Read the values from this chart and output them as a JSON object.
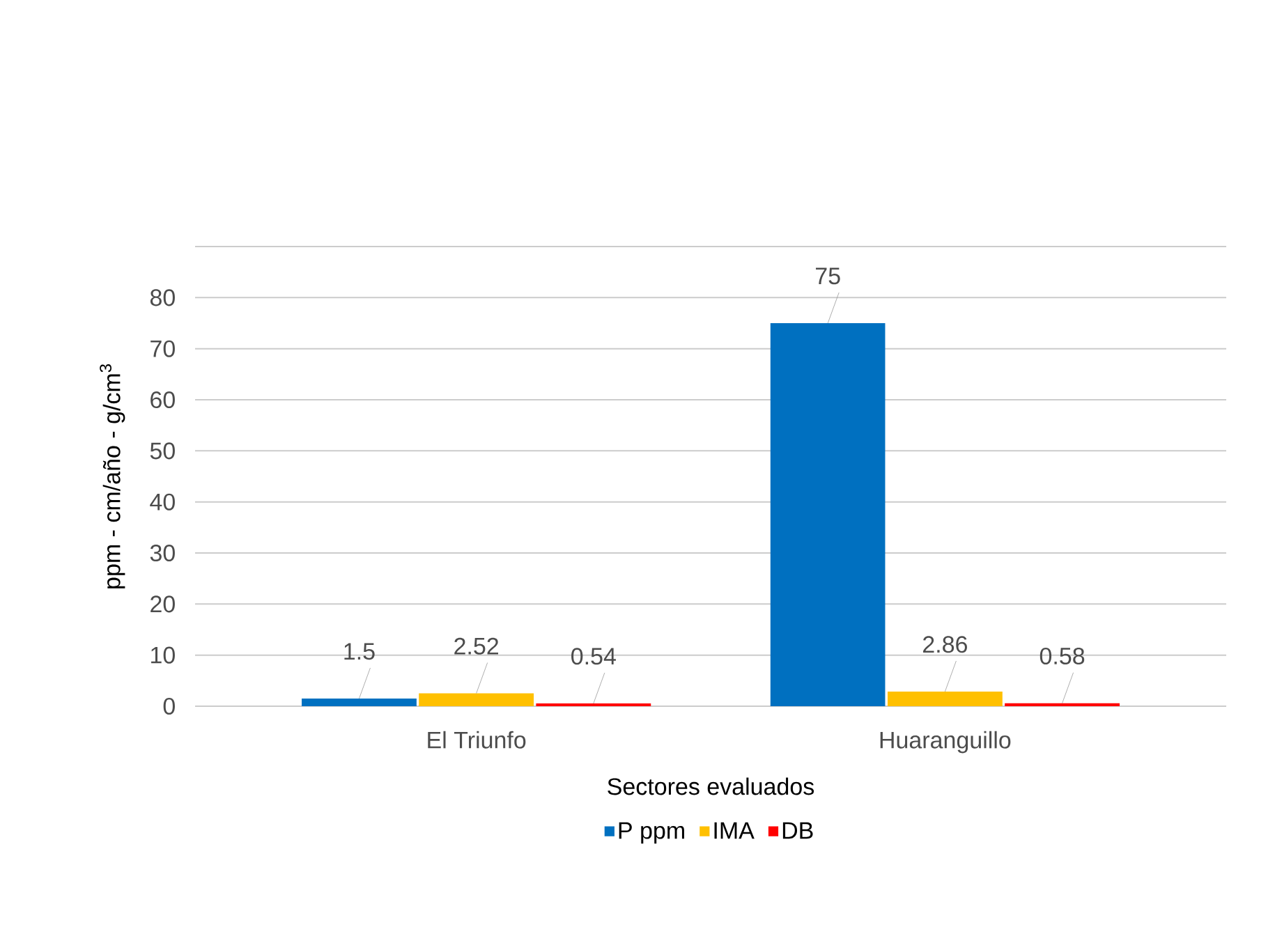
{
  "chart_data": {
    "type": "bar",
    "xlabel": "Sectores  evaluados",
    "ylabel": "ppm - cm/año - g/cm$^{3}$",
    "categories": [
      "El Triunfo",
      "Huaranguillo"
    ],
    "series": [
      {
        "name": "P ppm",
        "color": "#0070c0",
        "values": [
          1.5,
          75
        ]
      },
      {
        "name": "IMA",
        "color": "#ffc000",
        "values": [
          2.52,
          2.86
        ]
      },
      {
        "name": "DB",
        "color": "#ff0000",
        "values": [
          0.54,
          0.58
        ]
      }
    ],
    "ylim": [
      0,
      90
    ],
    "yticks": [
      0,
      10,
      20,
      30,
      40,
      50,
      60,
      70,
      80,
      {
        "value": 90,
        "label": null
      }
    ],
    "grid": "y",
    "legend": "bottom",
    "data_labels": true
  }
}
